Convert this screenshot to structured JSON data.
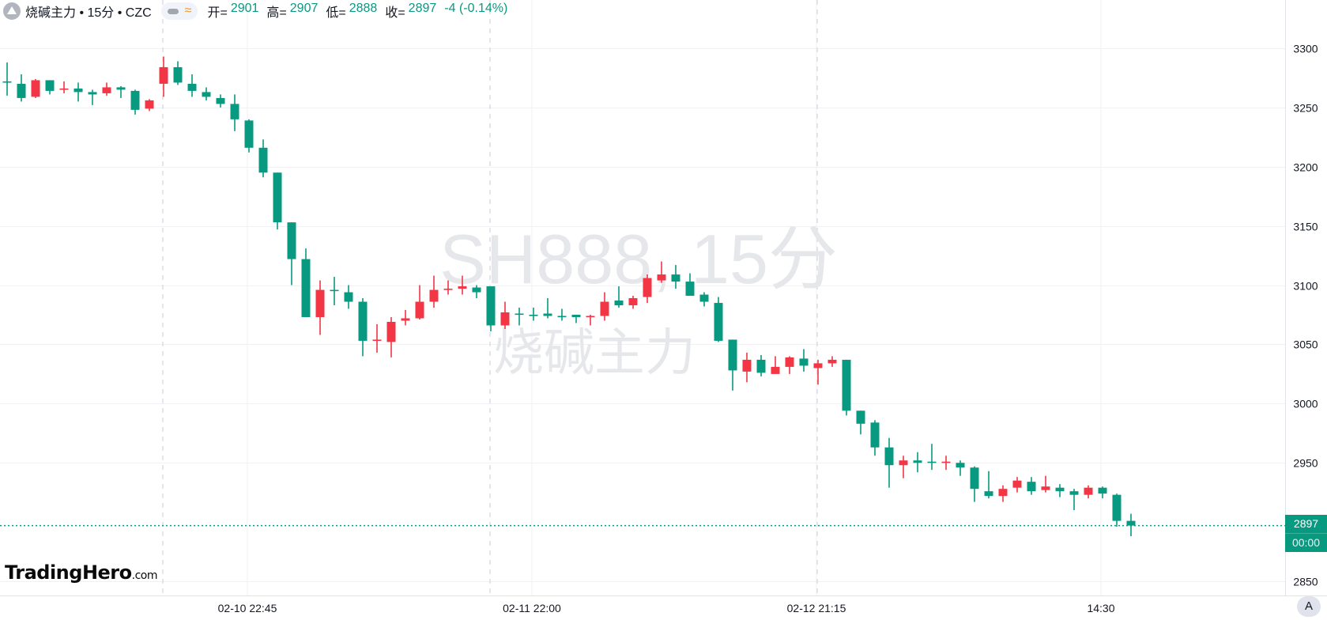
{
  "header": {
    "icon": "symbol-logo-icon",
    "title": "烧碱主力 • 15分 • CZC",
    "open_label": "开=",
    "open": "2901",
    "high_label": "高=",
    "high": "2907",
    "low_label": "低=",
    "low": "2888",
    "close_label": "收=",
    "close": "2897",
    "change": "-4 (-0.14%)"
  },
  "watermark": {
    "line1": "SH888, 15分",
    "line2": "烧碱主力"
  },
  "logo": {
    "brand": "TradingHero",
    "suffix": ".com"
  },
  "last_price": {
    "value": "2897",
    "countdown": "00:00"
  },
  "auto_scale_label": "A",
  "colors": {
    "up": "#f23645",
    "down": "#089981",
    "grid": "#f0f1f4",
    "watermark": "#e6e7ea"
  },
  "chart_data": {
    "type": "candlestick",
    "title": "",
    "ylim": [
      2840,
      3320
    ],
    "y_ticks": [
      3300,
      3250,
      3200,
      3150,
      3100,
      3050,
      3000,
      2950,
      2850
    ],
    "x_ticks": [
      {
        "label": "02-10 22:45",
        "bar": 18
      },
      {
        "label": "02-11 22:00",
        "bar": 38
      },
      {
        "label": "02-12 21:15",
        "bar": 58
      },
      {
        "label": "14:30",
        "bar": 78
      }
    ],
    "session_breaks_at_bar": [
      12,
      35,
      58
    ],
    "grid": true,
    "last_price": 2897,
    "ohlc": [
      [
        3272,
        3288,
        3260,
        3271
      ],
      [
        3270,
        3278,
        3255,
        3258
      ],
      [
        3259,
        3274,
        3258,
        3273
      ],
      [
        3273,
        3273,
        3261,
        3264
      ],
      [
        3265,
        3272,
        3262,
        3266
      ],
      [
        3266,
        3271,
        3255,
        3263
      ],
      [
        3263,
        3265,
        3252,
        3261
      ],
      [
        3262,
        3271,
        3260,
        3267
      ],
      [
        3267,
        3268,
        3258,
        3265
      ],
      [
        3264,
        3265,
        3244,
        3248
      ],
      [
        3249,
        3257,
        3247,
        3256
      ],
      [
        3270,
        3293,
        3259,
        3284
      ],
      [
        3284,
        3289,
        3269,
        3271
      ],
      [
        3270,
        3278,
        3259,
        3264
      ],
      [
        3263,
        3267,
        3256,
        3259
      ],
      [
        3258,
        3261,
        3250,
        3253
      ],
      [
        3253,
        3261,
        3230,
        3240
      ],
      [
        3239,
        3240,
        3212,
        3216
      ],
      [
        3216,
        3223,
        3191,
        3195
      ],
      [
        3195,
        3195,
        3147,
        3153
      ],
      [
        3153,
        3153,
        3100,
        3122
      ],
      [
        3122,
        3131,
        3073,
        3073
      ],
      [
        3073,
        3104,
        3058,
        3096
      ],
      [
        3096,
        3107,
        3083,
        3095
      ],
      [
        3094,
        3100,
        3080,
        3086
      ],
      [
        3086,
        3089,
        3040,
        3053
      ],
      [
        3053,
        3067,
        3043,
        3054
      ],
      [
        3052,
        3073,
        3039,
        3069
      ],
      [
        3070,
        3079,
        3066,
        3072
      ],
      [
        3072,
        3100,
        3071,
        3086
      ],
      [
        3086,
        3108,
        3081,
        3096
      ],
      [
        3096,
        3104,
        3092,
        3097
      ],
      [
        3097,
        3108,
        3092,
        3099
      ],
      [
        3098,
        3100,
        3089,
        3094
      ],
      [
        3099,
        3099,
        3061,
        3066
      ],
      [
        3066,
        3086,
        3063,
        3077
      ],
      [
        3076,
        3081,
        3066,
        3075
      ],
      [
        3075,
        3081,
        3070,
        3074
      ],
      [
        3076,
        3089,
        3072,
        3074
      ],
      [
        3074,
        3080,
        3070,
        3073
      ],
      [
        3075,
        3075,
        3068,
        3073
      ],
      [
        3073,
        3075,
        3066,
        3074
      ],
      [
        3074,
        3094,
        3070,
        3086
      ],
      [
        3087,
        3099,
        3081,
        3083
      ],
      [
        3083,
        3091,
        3080,
        3089
      ],
      [
        3090,
        3109,
        3085,
        3106
      ],
      [
        3104,
        3120,
        3102,
        3109
      ],
      [
        3109,
        3117,
        3097,
        3103
      ],
      [
        3103,
        3110,
        3091,
        3091
      ],
      [
        3092,
        3094,
        3082,
        3086
      ],
      [
        3085,
        3090,
        3052,
        3053
      ],
      [
        3054,
        3054,
        3011,
        3028
      ],
      [
        3027,
        3043,
        3018,
        3037
      ],
      [
        3037,
        3041,
        3023,
        3026
      ],
      [
        3025,
        3040,
        3025,
        3031
      ],
      [
        3031,
        3040,
        3025,
        3039
      ],
      [
        3038,
        3046,
        3027,
        3032
      ],
      [
        3030,
        3037,
        3016,
        3034
      ],
      [
        3034,
        3040,
        3031,
        3037
      ],
      [
        3037,
        3037,
        2990,
        2994
      ],
      [
        2994,
        2994,
        2974,
        2983
      ],
      [
        2984,
        2986,
        2956,
        2963
      ],
      [
        2963,
        2971,
        2929,
        2948
      ],
      [
        2948,
        2956,
        2937,
        2952
      ],
      [
        2952,
        2959,
        2942,
        2950
      ],
      [
        2951,
        2966,
        2944,
        2950
      ],
      [
        2950,
        2956,
        2944,
        2951
      ],
      [
        2950,
        2952,
        2939,
        2946
      ],
      [
        2946,
        2947,
        2917,
        2928
      ],
      [
        2926,
        2943,
        2920,
        2922
      ],
      [
        2922,
        2931,
        2917,
        2928
      ],
      [
        2929,
        2938,
        2925,
        2935
      ],
      [
        2934,
        2938,
        2923,
        2926
      ],
      [
        2927,
        2939,
        2925,
        2930
      ],
      [
        2929,
        2932,
        2921,
        2926
      ],
      [
        2926,
        2928,
        2910,
        2923
      ],
      [
        2923,
        2931,
        2920,
        2929
      ],
      [
        2929,
        2930,
        2920,
        2924
      ],
      [
        2923,
        2924,
        2896,
        2901
      ],
      [
        2901,
        2907,
        2888,
        2897
      ]
    ]
  }
}
